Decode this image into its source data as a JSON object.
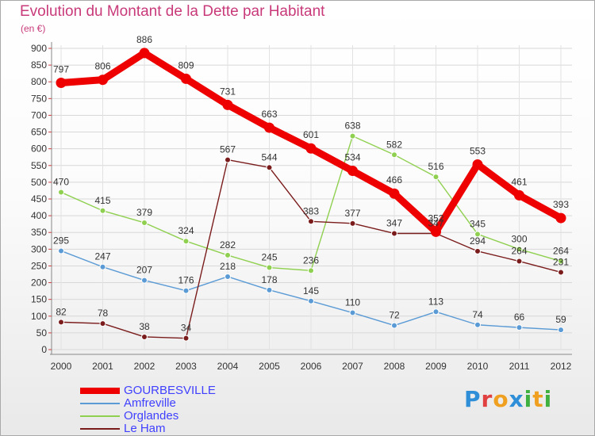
{
  "page": {
    "title": "Evolution du Montant de la Dette par Habitant",
    "unit": "(en €)",
    "brand": "Proxiti"
  },
  "chart_data": {
    "type": "line",
    "x": [
      "2000",
      "2001",
      "2002",
      "2003",
      "2004",
      "2005",
      "2006",
      "2007",
      "2008",
      "2009",
      "2010",
      "2011",
      "2012"
    ],
    "ylim": [
      0,
      900
    ],
    "yticks": [
      0,
      50,
      100,
      150,
      200,
      250,
      300,
      350,
      400,
      450,
      500,
      550,
      600,
      650,
      700,
      750,
      800,
      850,
      900
    ],
    "grid": true,
    "legend_position": "bottom-left",
    "series": [
      {
        "name": "GOURBESVILLE",
        "color": "#ee0000",
        "emphasis": true,
        "values": [
          797,
          806,
          886,
          809,
          731,
          663,
          601,
          534,
          466,
          352,
          553,
          461,
          393
        ]
      },
      {
        "name": "Amfreville",
        "color": "#5b9bd5",
        "emphasis": false,
        "values": [
          295,
          247,
          207,
          176,
          218,
          178,
          145,
          110,
          72,
          113,
          74,
          66,
          59
        ]
      },
      {
        "name": "Orglandes",
        "color": "#90d050",
        "emphasis": false,
        "values": [
          470,
          415,
          379,
          324,
          282,
          245,
          236,
          638,
          582,
          516,
          345,
          300,
          264
        ]
      },
      {
        "name": "Le Ham",
        "color": "#7b1c1c",
        "emphasis": false,
        "values": [
          82,
          78,
          38,
          34,
          567,
          544,
          383,
          377,
          347,
          347,
          294,
          264,
          231
        ]
      }
    ]
  }
}
